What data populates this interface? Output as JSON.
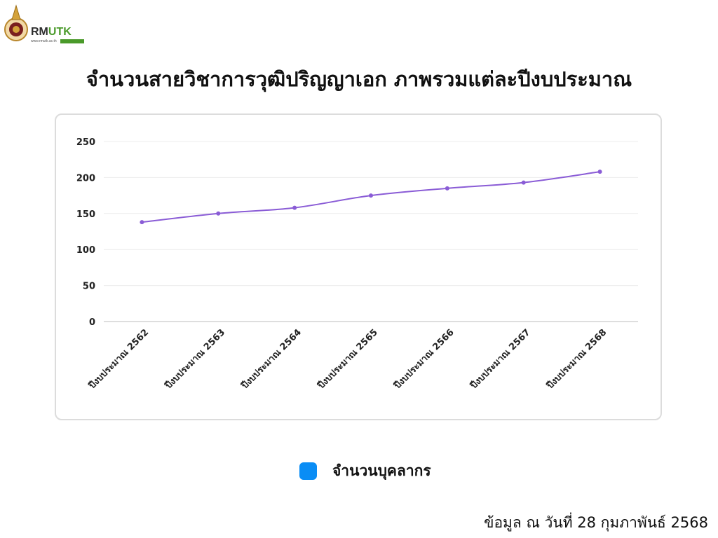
{
  "logo": {
    "brand_text_part1": "RM",
    "brand_text_part2": "UTK",
    "url_text": "www.rmutk.ac.th",
    "brand_color": "#4a9a2a"
  },
  "title": "จำนวนสายวิชาการวุฒิปริญญาเอก ภาพรวมแต่ละปีงบประมาณ",
  "chart_data": {
    "type": "line",
    "categories": [
      "ปีงบประมาณ 2562",
      "ปีงบประมาณ 2563",
      "ปีงบประมาณ 2564",
      "ปีงบประมาณ 2565",
      "ปีงบประมาณ 2566",
      "ปีงบประมาณ 2567",
      "ปีงบประมาณ 2568"
    ],
    "series": [
      {
        "name": "จำนวนบุคลากร",
        "values": [
          138,
          150,
          158,
          175,
          185,
          193,
          208
        ],
        "color": "#8a5cd6"
      }
    ],
    "ylim": [
      0,
      250
    ],
    "yticks": [
      "0",
      "50",
      "100",
      "150",
      "200",
      "250"
    ],
    "grid": true,
    "legend_position": "bottom",
    "legend_swatch_color": "#0a8df5"
  },
  "legend": {
    "label": "จำนวนบุคลากร"
  },
  "footnote": "ข้อมูล ณ วันที่ 28 กุมภาพันธ์ 2568"
}
